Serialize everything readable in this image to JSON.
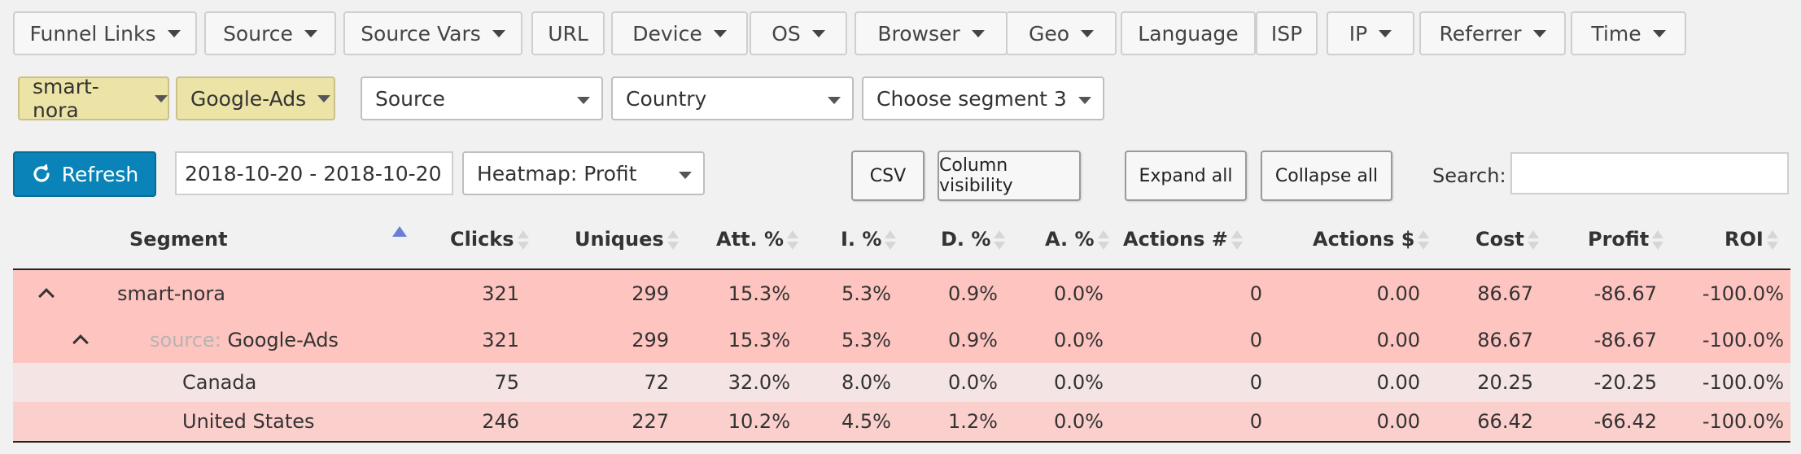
{
  "filter_tabs": [
    {
      "label": "Funnel Links",
      "dropdown": true
    },
    {
      "label": "Source",
      "dropdown": true
    },
    {
      "label": "Source Vars",
      "dropdown": true
    },
    {
      "label": "URL",
      "dropdown": false
    },
    {
      "label": "Device",
      "dropdown": true
    },
    {
      "label": "OS",
      "dropdown": true
    },
    {
      "label": "Browser",
      "dropdown": true
    },
    {
      "label": "Geo",
      "dropdown": true
    },
    {
      "label": "Language",
      "dropdown": false
    },
    {
      "label": "ISP",
      "dropdown": false
    },
    {
      "label": "IP",
      "dropdown": true
    },
    {
      "label": "Referrer",
      "dropdown": true
    },
    {
      "label": "Time",
      "dropdown": true
    }
  ],
  "active_filters": [
    {
      "label": "smart-nora"
    },
    {
      "label": "Google-Ads"
    }
  ],
  "segments": [
    {
      "value": "Source"
    },
    {
      "value": "Country"
    },
    {
      "value": "Choose segment 3"
    }
  ],
  "toolbar": {
    "refresh_label": "Refresh",
    "date_range": "2018-10-20 - 2018-10-20",
    "heatmap": "Heatmap: Profit",
    "csv_label": "CSV",
    "column_visibility_label": "Column visibility",
    "expand_all_label": "Expand all",
    "collapse_all_label": "Collapse all",
    "search_label": "Search:",
    "search_value": ""
  },
  "colors": {
    "accent": "#0a84b8",
    "chip": "#ece4a6",
    "row_strong": "#fdc4c0",
    "row_light": "#f5e4e4",
    "row_mid": "#fbcfcc"
  },
  "table": {
    "headers": [
      "Segment",
      "Clicks",
      "Uniques",
      "Att. %",
      "I. %",
      "D. %",
      "A. %",
      "Actions #",
      "Actions $",
      "Cost",
      "Profit",
      "ROI"
    ],
    "rows": [
      {
        "level": 0,
        "expanded": true,
        "prefix": "",
        "name": "smart-nora",
        "clicks": "321",
        "uniques": "299",
        "att": "15.3%",
        "i": "5.3%",
        "d": "0.9%",
        "a": "0.0%",
        "actions_n": "0",
        "actions_d": "0.00",
        "cost": "86.67",
        "profit": "-86.67",
        "roi": "-100.0%"
      },
      {
        "level": 1,
        "expanded": true,
        "prefix": "source:",
        "name": "Google-Ads",
        "clicks": "321",
        "uniques": "299",
        "att": "15.3%",
        "i": "5.3%",
        "d": "0.9%",
        "a": "0.0%",
        "actions_n": "0",
        "actions_d": "0.00",
        "cost": "86.67",
        "profit": "-86.67",
        "roi": "-100.0%"
      },
      {
        "level": 2,
        "expanded": false,
        "prefix": "",
        "name": "Canada",
        "clicks": "75",
        "uniques": "72",
        "att": "32.0%",
        "i": "8.0%",
        "d": "0.0%",
        "a": "0.0%",
        "actions_n": "0",
        "actions_d": "0.00",
        "cost": "20.25",
        "profit": "-20.25",
        "roi": "-100.0%"
      },
      {
        "level": 2,
        "expanded": false,
        "prefix": "",
        "name": "United States",
        "clicks": "246",
        "uniques": "227",
        "att": "10.2%",
        "i": "4.5%",
        "d": "1.2%",
        "a": "0.0%",
        "actions_n": "0",
        "actions_d": "0.00",
        "cost": "66.42",
        "profit": "-66.42",
        "roi": "-100.0%"
      }
    ]
  }
}
